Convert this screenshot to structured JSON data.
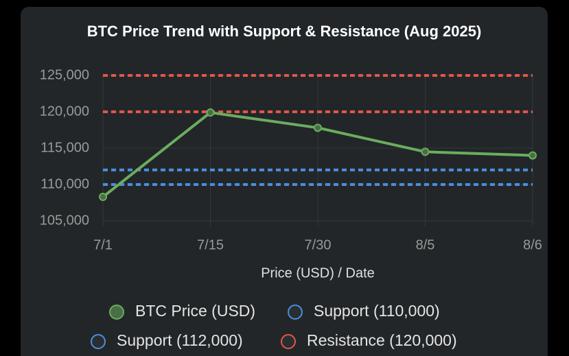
{
  "chart_data": {
    "type": "line",
    "title": "BTC Price Trend with Support & Resistance (Aug 2025)",
    "x_label": "Price (USD) / Date",
    "categories": [
      "7/1",
      "7/15",
      "7/30",
      "8/5",
      "8/6"
    ],
    "series": [
      {
        "name": "BTC Price (USD)",
        "color": "#6aad5e",
        "style": "solid",
        "markers": true,
        "values": [
          108300,
          119900,
          117800,
          114500,
          114000
        ]
      },
      {
        "name": "Support (110,000)",
        "color": "#4a8fe0",
        "style": "dashed",
        "markers": false,
        "values": [
          110000,
          110000,
          110000,
          110000,
          110000
        ]
      },
      {
        "name": "Support (112,000)",
        "color": "#4a8fe0",
        "style": "dashed",
        "markers": false,
        "values": [
          112000,
          112000,
          112000,
          112000,
          112000
        ]
      },
      {
        "name": "Resistance (120,000)",
        "color": "#e0574a",
        "style": "dashed",
        "markers": false,
        "values": [
          120000,
          120000,
          120000,
          120000,
          120000
        ]
      },
      {
        "color": "#e0574a",
        "style": "dashed",
        "markers": false,
        "values": [
          125000,
          125000,
          125000,
          125000,
          125000
        ]
      }
    ],
    "ylim": [
      105000,
      125000
    ],
    "yticks": [
      {
        "value": 105000,
        "label": "105,000"
      },
      {
        "value": 110000,
        "label": "110,000"
      },
      {
        "value": 115000,
        "label": "115,000"
      },
      {
        "value": 120000,
        "label": "120,000"
      },
      {
        "value": 125000,
        "label": "125,000"
      }
    ],
    "grid": true
  }
}
